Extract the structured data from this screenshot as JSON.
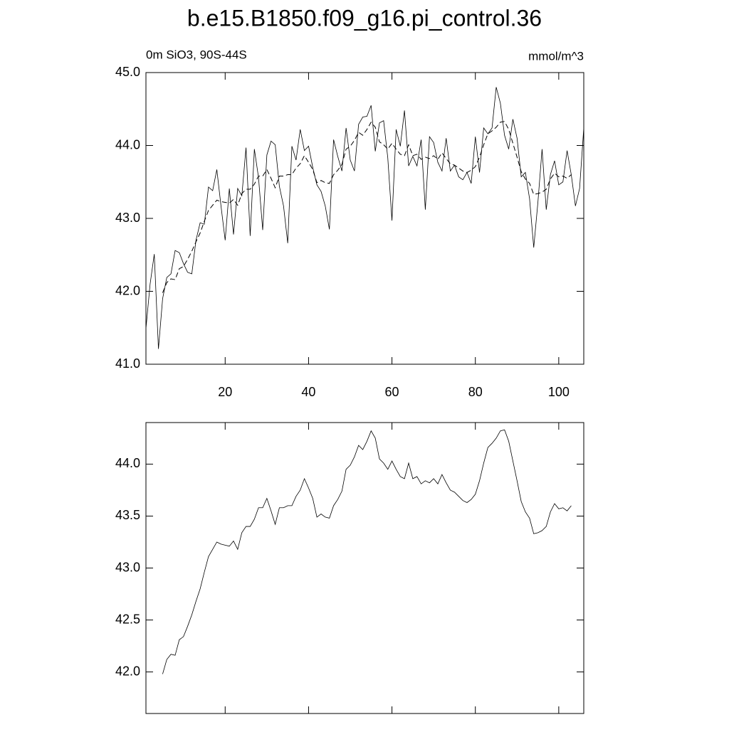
{
  "title": "b.e15.B1850.f09_g16.pi_control.36",
  "chart_data": [
    {
      "type": "line",
      "left_string": "0m SiO3, 90S-44S",
      "right_string": "mmol/m^3",
      "x": [
        1,
        2,
        3,
        4,
        5,
        6,
        7,
        8,
        9,
        10,
        11,
        12,
        13,
        14,
        15,
        16,
        17,
        18,
        19,
        20,
        21,
        22,
        23,
        24,
        25,
        26,
        27,
        28,
        29,
        30,
        31,
        32,
        33,
        34,
        35,
        36,
        37,
        38,
        39,
        40,
        41,
        42,
        43,
        44,
        45,
        46,
        47,
        48,
        49,
        50,
        51,
        52,
        53,
        54,
        55,
        56,
        57,
        58,
        59,
        60,
        61,
        62,
        63,
        64,
        65,
        66,
        67,
        68,
        69,
        70,
        71,
        72,
        73,
        74,
        75,
        76,
        77,
        78,
        79,
        80,
        81,
        82,
        83,
        84,
        85,
        86,
        87,
        88,
        89,
        90,
        91,
        92,
        93,
        94,
        95,
        96,
        97,
        98,
        99,
        100,
        101,
        102,
        103,
        104,
        105,
        106
      ],
      "xlim": [
        1,
        106
      ],
      "xticks": [
        20,
        40,
        60,
        80,
        100
      ],
      "ylim": [
        41,
        45
      ],
      "yticks": [
        {
          "value": 41,
          "label": "41.0"
        },
        {
          "value": 42,
          "label": "42.0"
        },
        {
          "value": 43,
          "label": "43.0"
        },
        {
          "value": 44,
          "label": "44.0"
        },
        {
          "value": 45,
          "label": "45.0"
        }
      ],
      "series": [
        {
          "color": "#000000",
          "dashed": false,
          "values": [
            41.49,
            42.1,
            42.51,
            41.21,
            41.9,
            42.19,
            42.24,
            42.56,
            42.53,
            42.38,
            42.26,
            42.24,
            42.7,
            42.94,
            42.92,
            43.43,
            43.38,
            43.67,
            43.17,
            42.7,
            43.41,
            42.78,
            43.41,
            43.31,
            43.97,
            42.76,
            43.95,
            43.56,
            42.84,
            43.87,
            44.06,
            44.01,
            43.44,
            43.17,
            42.66,
            43.99,
            43.8,
            44.22,
            43.93,
            43.99,
            43.7,
            43.46,
            43.37,
            43.17,
            42.85,
            44.08,
            43.85,
            43.65,
            44.24,
            43.8,
            43.65,
            44.29,
            44.39,
            44.4,
            44.55,
            43.92,
            44.31,
            44.34,
            43.83,
            42.97,
            44.22,
            43.99,
            44.48,
            43.72,
            43.85,
            43.72,
            44.08,
            43.12,
            44.12,
            44.04,
            43.77,
            43.65,
            44.1,
            43.65,
            43.73,
            43.57,
            43.53,
            43.63,
            43.48,
            44.12,
            43.63,
            44.24,
            44.16,
            44.24,
            44.8,
            44.58,
            44.14,
            43.95,
            44.36,
            44.1,
            43.57,
            43.63,
            43.27,
            42.6,
            43.22,
            43.95,
            43.12,
            43.6,
            43.79,
            43.46,
            43.5,
            43.93,
            43.6,
            43.17,
            43.41,
            44.24
          ]
        },
        {
          "color": "#000000",
          "dashed": true,
          "values": [
            null,
            null,
            null,
            null,
            41.98,
            42.12,
            42.17,
            42.16,
            42.31,
            42.34,
            42.44,
            42.55,
            42.68,
            42.8,
            42.96,
            43.11,
            43.18,
            43.25,
            43.23,
            43.22,
            43.21,
            43.26,
            43.18,
            43.34,
            43.4,
            43.4,
            43.47,
            43.58,
            43.58,
            43.67,
            43.55,
            43.42,
            43.58,
            43.58,
            43.6,
            43.6,
            43.69,
            43.75,
            43.86,
            43.77,
            43.67,
            43.49,
            43.52,
            43.49,
            43.48,
            43.6,
            43.66,
            43.74,
            43.95,
            43.99,
            44.07,
            44.18,
            44.14,
            44.22,
            44.32,
            44.25,
            44.05,
            44.01,
            43.95,
            44.03,
            43.95,
            43.88,
            43.86,
            44.01,
            43.86,
            43.88,
            43.81,
            43.84,
            43.82,
            43.86,
            43.81,
            43.9,
            43.82,
            43.75,
            43.73,
            43.69,
            43.65,
            43.63,
            43.66,
            43.71,
            43.84,
            44.01,
            44.16,
            44.2,
            44.25,
            44.32,
            44.33,
            44.22,
            44.03,
            43.84,
            43.64,
            43.54,
            43.48,
            43.33,
            43.34,
            43.36,
            43.4,
            43.54,
            43.62,
            43.57,
            43.58,
            43.55,
            43.6,
            null,
            null,
            null
          ]
        }
      ]
    },
    {
      "type": "line",
      "x": [
        1,
        2,
        3,
        4,
        5,
        6,
        7,
        8,
        9,
        10,
        11,
        12,
        13,
        14,
        15,
        16,
        17,
        18,
        19,
        20,
        21,
        22,
        23,
        24,
        25,
        26,
        27,
        28,
        29,
        30,
        31,
        32,
        33,
        34,
        35,
        36,
        37,
        38,
        39,
        40,
        41,
        42,
        43,
        44,
        45,
        46,
        47,
        48,
        49,
        50,
        51,
        52,
        53,
        54,
        55,
        56,
        57,
        58,
        59,
        60,
        61,
        62,
        63,
        64,
        65,
        66,
        67,
        68,
        69,
        70,
        71,
        72,
        73,
        74,
        75,
        76,
        77,
        78,
        79,
        80,
        81,
        82,
        83,
        84,
        85,
        86,
        87,
        88,
        89,
        90,
        91,
        92,
        93,
        94,
        95,
        96,
        97,
        98,
        99,
        100,
        101,
        102,
        103,
        104,
        105,
        106
      ],
      "xlim": [
        1,
        106
      ],
      "ylim": [
        41.6,
        44.4
      ],
      "yticks": [
        {
          "value": 42,
          "label": "42.0"
        },
        {
          "value": 42.5,
          "label": "42.5"
        },
        {
          "value": 43,
          "label": "43.0"
        },
        {
          "value": 43.5,
          "label": "43.5"
        },
        {
          "value": 44,
          "label": "44.0"
        }
      ],
      "series": [
        {
          "color": "#000000",
          "dashed": false,
          "values": [
            null,
            null,
            null,
            null,
            41.98,
            42.12,
            42.17,
            42.16,
            42.31,
            42.34,
            42.44,
            42.55,
            42.68,
            42.8,
            42.96,
            43.11,
            43.18,
            43.25,
            43.23,
            43.22,
            43.21,
            43.26,
            43.18,
            43.34,
            43.4,
            43.4,
            43.47,
            43.58,
            43.58,
            43.67,
            43.55,
            43.42,
            43.58,
            43.58,
            43.6,
            43.6,
            43.69,
            43.75,
            43.86,
            43.77,
            43.67,
            43.49,
            43.52,
            43.49,
            43.48,
            43.6,
            43.66,
            43.74,
            43.95,
            43.99,
            44.07,
            44.18,
            44.14,
            44.22,
            44.32,
            44.25,
            44.05,
            44.01,
            43.95,
            44.03,
            43.95,
            43.88,
            43.86,
            44.01,
            43.86,
            43.88,
            43.81,
            43.84,
            43.82,
            43.86,
            43.81,
            43.9,
            43.82,
            43.75,
            43.73,
            43.69,
            43.65,
            43.63,
            43.66,
            43.71,
            43.84,
            44.01,
            44.16,
            44.2,
            44.25,
            44.32,
            44.33,
            44.22,
            44.03,
            43.84,
            43.64,
            43.54,
            43.48,
            43.33,
            43.34,
            43.36,
            43.4,
            43.54,
            43.62,
            43.57,
            43.58,
            43.55,
            43.6,
            null,
            null,
            null
          ]
        }
      ]
    }
  ]
}
